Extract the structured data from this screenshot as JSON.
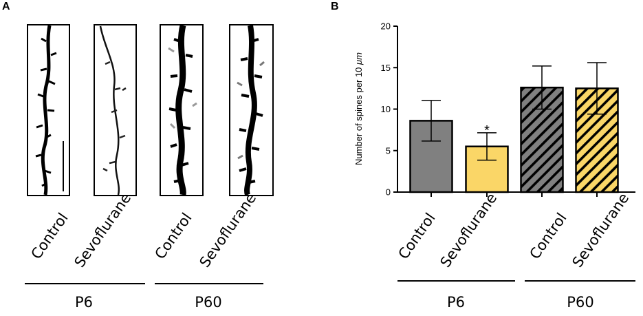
{
  "panel_a": {
    "letter": "A",
    "images": [
      {
        "label": "Control",
        "description": "dendrite"
      },
      {
        "label": "Sevoflurane",
        "description": "dendrite"
      },
      {
        "label": "Control",
        "description": "dendrite"
      },
      {
        "label": "Sevoflurane",
        "description": "dendrite"
      }
    ],
    "groups": [
      "P6",
      "P60"
    ]
  },
  "panel_b": {
    "letter": "B",
    "groups": [
      "P6",
      "P60"
    ]
  },
  "colors": {
    "control": "#808080",
    "sevoflurane": "#fad667",
    "stroke": "#000000"
  },
  "chart_data": {
    "type": "bar",
    "title": "",
    "xlabel": "",
    "ylabel": "Number of spines per 10 μm",
    "ylabel_parts": {
      "main": "Number of spines per 10 ",
      "unit": "μm"
    },
    "ylim": [
      0,
      20
    ],
    "yticks": [
      "0",
      "5",
      "10",
      "15",
      "20"
    ],
    "categories": [
      "Control",
      "Sevoflurane",
      "Control",
      "Sevoflurane"
    ],
    "values": [
      8.6,
      5.5,
      12.6,
      12.5
    ],
    "errors": [
      2.45,
      1.65,
      2.6,
      3.1
    ],
    "hatched": [
      false,
      false,
      true,
      true
    ],
    "annotations": [
      {
        "category_index": 1,
        "text": "*"
      }
    ]
  }
}
